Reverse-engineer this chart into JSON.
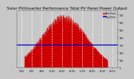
{
  "title": "Solar PV/Inverter Performance Total PV Panel Power Output",
  "title_fontsize": 4.2,
  "bg_color": "#c8c8c8",
  "plot_bg_color": "#c8c8c8",
  "fill_color": "#cc0000",
  "line_color": "#cc0000",
  "hline_color": "#0000cc",
  "hline_y": 0.43,
  "grid_color": "#ffffff",
  "grid_alpha": 0.9,
  "mu": 47,
  "sigma": 22,
  "ylim": [
    0,
    1.08
  ],
  "xlim": [
    0,
    100
  ],
  "ylabel_right": [
    "700",
    "600",
    "500",
    "400",
    "300",
    "200",
    "100",
    "0"
  ],
  "ylabel_right_vals": [
    1.0,
    0.857,
    0.714,
    0.571,
    0.429,
    0.286,
    0.143,
    0.0
  ],
  "xlabel_ticks": [
    5,
    15,
    25,
    35,
    45,
    55,
    65,
    75,
    85,
    95
  ],
  "xlabel_labels": [
    "5:00",
    "7:00",
    "9:00",
    "11:00",
    "13:00",
    "15:00",
    "17:00",
    "19:00",
    "21:00",
    "23:00"
  ],
  "legend_labels": [
    "Max Power",
    "Avg Power"
  ],
  "legend_colors": [
    "#ff2222",
    "#2222ff"
  ]
}
